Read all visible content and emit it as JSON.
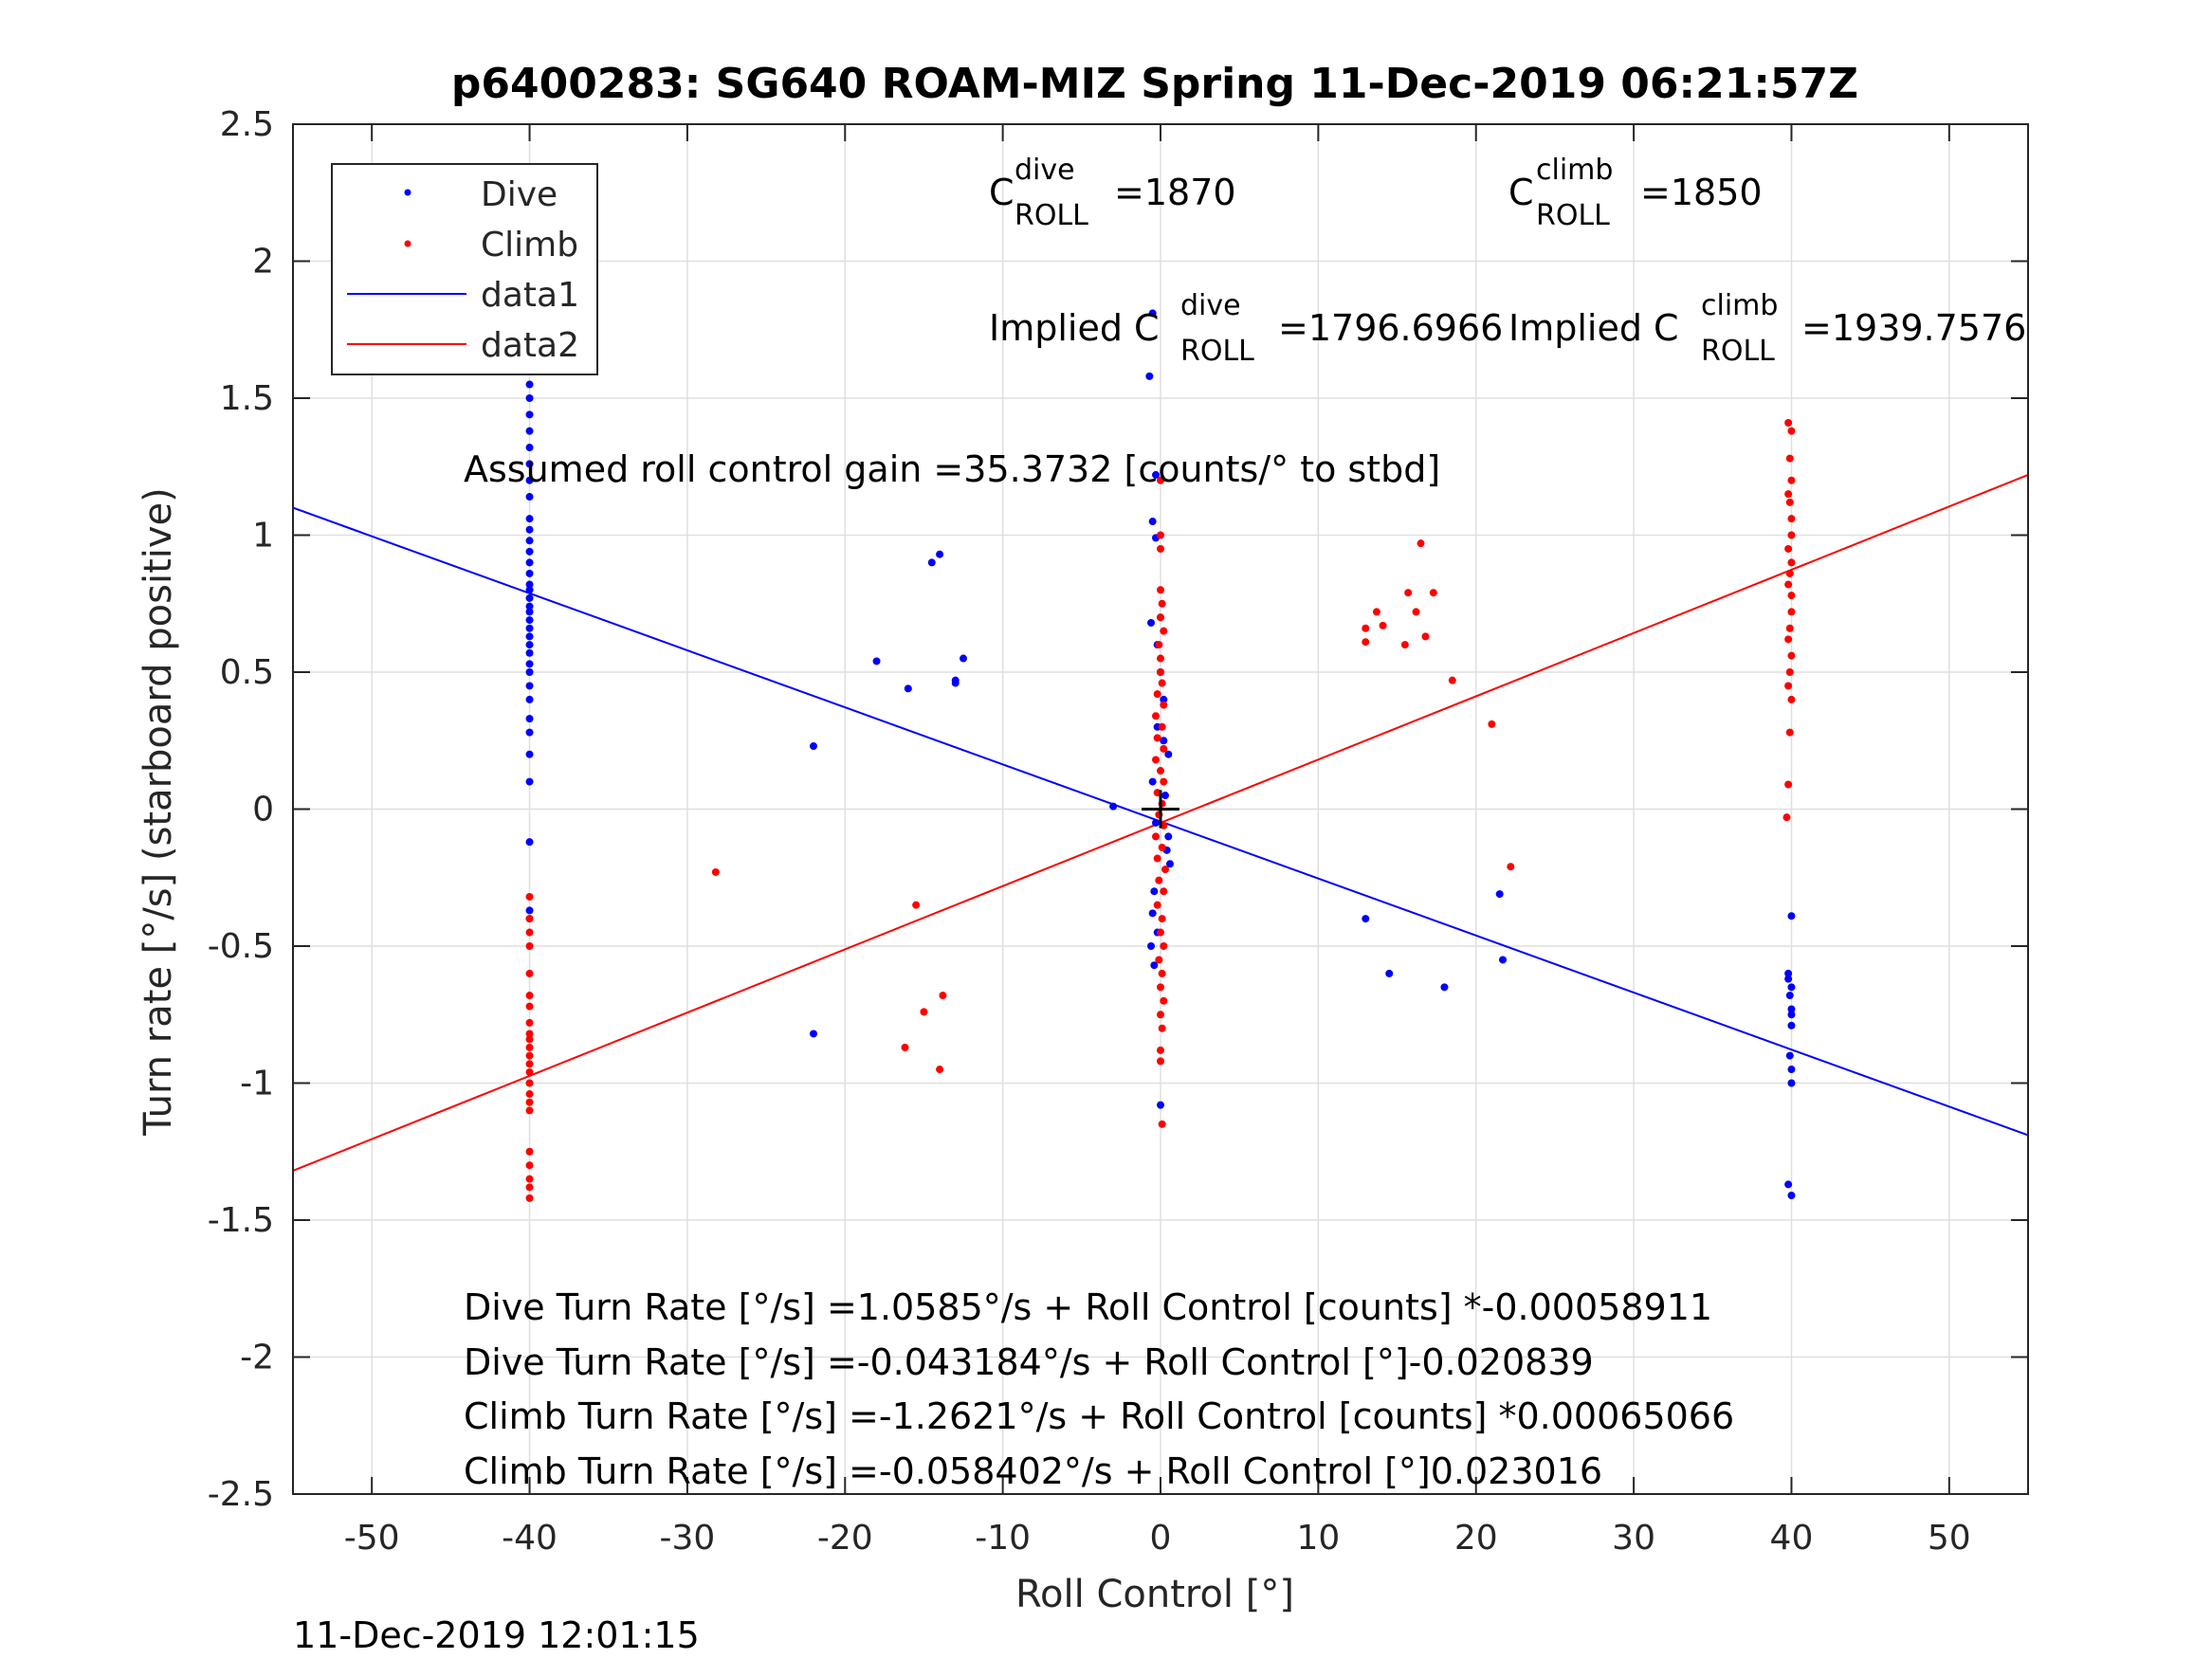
{
  "chart_data": {
    "type": "scatter",
    "title": "p6400283: SG640 ROAM-MIZ Spring 11-Dec-2019 06:21:57Z",
    "xlabel": "Roll Control [°]",
    "ylabel": "Turn rate [°/s] (starboard positive)",
    "xlim": [
      -55,
      55
    ],
    "ylim": [
      -2.5,
      2.5
    ],
    "xticks": [
      -50,
      -40,
      -30,
      -20,
      -10,
      0,
      10,
      20,
      30,
      40,
      50
    ],
    "yticks": [
      -2.5,
      -2,
      -1.5,
      -1,
      -0.5,
      0,
      0.5,
      1,
      1.5,
      2,
      2.5
    ],
    "ytick_labels": [
      "-2.5",
      "-2",
      "-1.5",
      "-1",
      "-0.5",
      "0",
      "0.5",
      "1",
      "1.5",
      "2",
      "2.5"
    ],
    "grid": true,
    "legend": {
      "position": "top-left",
      "entries": [
        {
          "label": "Dive",
          "color": "#0000ff",
          "marker": "dot"
        },
        {
          "label": "Climb",
          "color": "#ff0000",
          "marker": "dot"
        },
        {
          "label": "data1",
          "color": "#0000ff",
          "marker": "line"
        },
        {
          "label": "data2",
          "color": "#ff0000",
          "marker": "line"
        }
      ]
    },
    "series": [
      {
        "name": "Dive",
        "color": "#0000ff",
        "kind": "points",
        "points": [
          [
            -40,
            1.8
          ],
          [
            -40,
            1.74
          ],
          [
            -40,
            1.68
          ],
          [
            -40,
            1.6
          ],
          [
            -40,
            1.55
          ],
          [
            -40,
            1.5
          ],
          [
            -40,
            1.44
          ],
          [
            -40,
            1.38
          ],
          [
            -40,
            1.32
          ],
          [
            -40,
            1.26
          ],
          [
            -40,
            1.2
          ],
          [
            -40,
            1.14
          ],
          [
            -40,
            1.06
          ],
          [
            -40,
            1.02
          ],
          [
            -40,
            0.98
          ],
          [
            -40,
            0.94
          ],
          [
            -40,
            0.9
          ],
          [
            -40,
            0.86
          ],
          [
            -40,
            0.82
          ],
          [
            -40,
            0.8
          ],
          [
            -40,
            0.77
          ],
          [
            -40,
            0.74
          ],
          [
            -40,
            0.72
          ],
          [
            -40,
            0.69
          ],
          [
            -40,
            0.66
          ],
          [
            -40,
            0.63
          ],
          [
            -40,
            0.6
          ],
          [
            -40,
            0.57
          ],
          [
            -40,
            0.53
          ],
          [
            -40,
            0.5
          ],
          [
            -40,
            0.45
          ],
          [
            -40,
            0.4
          ],
          [
            -40,
            0.33
          ],
          [
            -40,
            0.28
          ],
          [
            -40,
            0.2
          ],
          [
            -40,
            0.1
          ],
          [
            -40,
            -0.12
          ],
          [
            -40,
            -0.37
          ],
          [
            -40,
            -0.4
          ],
          [
            -22,
            0.23
          ],
          [
            -22,
            -0.82
          ],
          [
            -18,
            0.54
          ],
          [
            -16,
            0.44
          ],
          [
            -14.5,
            0.9
          ],
          [
            -14,
            0.93
          ],
          [
            -13,
            0.47
          ],
          [
            -13,
            0.46
          ],
          [
            -12.5,
            0.55
          ],
          [
            -3,
            0.01
          ],
          [
            -0.5,
            1.81
          ],
          [
            -0.7,
            1.58
          ],
          [
            -0.3,
            1.22
          ],
          [
            -0.5,
            1.05
          ],
          [
            -0.3,
            0.99
          ],
          [
            -0.6,
            0.68
          ],
          [
            0,
            0.7
          ],
          [
            -0.2,
            0.6
          ],
          [
            0,
            0.5
          ],
          [
            0.2,
            0.4
          ],
          [
            -0.2,
            0.3
          ],
          [
            0.5,
            0.2
          ],
          [
            -0.5,
            0.1
          ],
          [
            0.3,
            0.05
          ],
          [
            -0.3,
            -0.05
          ],
          [
            0.5,
            -0.1
          ],
          [
            0.6,
            -0.2
          ],
          [
            -0.4,
            -0.3
          ],
          [
            -0.5,
            -0.38
          ],
          [
            -0.2,
            -0.45
          ],
          [
            -0.6,
            -0.5
          ],
          [
            -0.4,
            -0.57
          ],
          [
            0,
            -1.08
          ],
          [
            0.2,
            0.25
          ],
          [
            0.4,
            -0.15
          ],
          [
            13,
            -0.4
          ],
          [
            14.5,
            -0.6
          ],
          [
            18,
            -0.65
          ],
          [
            21.5,
            -0.31
          ],
          [
            21.7,
            -0.55
          ],
          [
            40,
            -0.39
          ],
          [
            39.8,
            -0.6
          ],
          [
            39.8,
            -0.62
          ],
          [
            40,
            -0.65
          ],
          [
            39.9,
            -0.68
          ],
          [
            40,
            -0.73
          ],
          [
            40,
            -0.75
          ],
          [
            40,
            -0.79
          ],
          [
            39.9,
            -0.9
          ],
          [
            40,
            -0.95
          ],
          [
            40,
            -1.0
          ],
          [
            39.8,
            -1.37
          ],
          [
            40,
            -1.41
          ]
        ]
      },
      {
        "name": "Climb",
        "color": "#ff0000",
        "kind": "points",
        "points": [
          [
            -40,
            -0.32
          ],
          [
            -40,
            -0.4
          ],
          [
            -40,
            -0.45
          ],
          [
            -40,
            -0.5
          ],
          [
            -40,
            -0.6
          ],
          [
            -40,
            -0.68
          ],
          [
            -40,
            -0.72
          ],
          [
            -40,
            -0.78
          ],
          [
            -40,
            -0.82
          ],
          [
            -40,
            -0.84
          ],
          [
            -40,
            -0.87
          ],
          [
            -40,
            -0.9
          ],
          [
            -40,
            -0.93
          ],
          [
            -40,
            -0.96
          ],
          [
            -40,
            -1.0
          ],
          [
            -40,
            -1.04
          ],
          [
            -40,
            -1.07
          ],
          [
            -40,
            -1.1
          ],
          [
            -40,
            -1.25
          ],
          [
            -40,
            -1.3
          ],
          [
            -40,
            -1.35
          ],
          [
            -40,
            -1.38
          ],
          [
            -40,
            -1.42
          ],
          [
            -28.2,
            -0.23
          ],
          [
            -16.2,
            -0.87
          ],
          [
            -15.5,
            -0.35
          ],
          [
            -15,
            -0.74
          ],
          [
            -14,
            -0.95
          ],
          [
            -13.8,
            -0.68
          ],
          [
            0,
            1.2
          ],
          [
            0,
            1.0
          ],
          [
            0,
            0.95
          ],
          [
            0,
            0.8
          ],
          [
            0.1,
            0.75
          ],
          [
            0,
            0.7
          ],
          [
            0.2,
            0.65
          ],
          [
            -0.1,
            0.6
          ],
          [
            0,
            0.55
          ],
          [
            0,
            0.5
          ],
          [
            0.1,
            0.46
          ],
          [
            -0.2,
            0.42
          ],
          [
            0.2,
            0.38
          ],
          [
            -0.3,
            0.34
          ],
          [
            0.1,
            0.3
          ],
          [
            -0.2,
            0.26
          ],
          [
            0.2,
            0.22
          ],
          [
            -0.3,
            0.18
          ],
          [
            0,
            0.14
          ],
          [
            0.2,
            0.1
          ],
          [
            -0.2,
            0.06
          ],
          [
            0.1,
            0.02
          ],
          [
            -0.1,
            -0.02
          ],
          [
            0.2,
            -0.06
          ],
          [
            -0.3,
            -0.1
          ],
          [
            0.1,
            -0.14
          ],
          [
            -0.2,
            -0.18
          ],
          [
            0.3,
            -0.22
          ],
          [
            -0.1,
            -0.26
          ],
          [
            0.2,
            -0.3
          ],
          [
            -0.2,
            -0.35
          ],
          [
            0.1,
            -0.4
          ],
          [
            0,
            -0.45
          ],
          [
            0.2,
            -0.5
          ],
          [
            -0.1,
            -0.55
          ],
          [
            0.1,
            -0.6
          ],
          [
            0,
            -0.65
          ],
          [
            0.2,
            -0.7
          ],
          [
            0,
            -0.75
          ],
          [
            0.1,
            -0.8
          ],
          [
            0,
            -0.88
          ],
          [
            0,
            -0.92
          ],
          [
            0.1,
            -1.15
          ],
          [
            13,
            0.66
          ],
          [
            13,
            0.61
          ],
          [
            13.7,
            0.72
          ],
          [
            14.1,
            0.67
          ],
          [
            15.5,
            0.6
          ],
          [
            15.7,
            0.79
          ],
          [
            16.2,
            0.72
          ],
          [
            16.5,
            0.97
          ],
          [
            16.8,
            0.63
          ],
          [
            17.3,
            0.79
          ],
          [
            18.5,
            0.47
          ],
          [
            21,
            0.31
          ],
          [
            22.2,
            -0.21
          ],
          [
            39.8,
            1.41
          ],
          [
            40,
            1.38
          ],
          [
            39.9,
            1.28
          ],
          [
            40,
            1.2
          ],
          [
            39.8,
            1.15
          ],
          [
            39.9,
            1.12
          ],
          [
            40,
            1.06
          ],
          [
            40,
            1.0
          ],
          [
            39.8,
            0.95
          ],
          [
            40,
            0.9
          ],
          [
            39.9,
            0.86
          ],
          [
            39.8,
            0.82
          ],
          [
            40,
            0.78
          ],
          [
            40,
            0.72
          ],
          [
            39.9,
            0.66
          ],
          [
            39.8,
            0.62
          ],
          [
            40,
            0.56
          ],
          [
            39.9,
            0.5
          ],
          [
            39.8,
            0.45
          ],
          [
            40,
            0.4
          ],
          [
            39.9,
            0.28
          ],
          [
            39.8,
            0.09
          ],
          [
            39.7,
            -0.03
          ]
        ]
      },
      {
        "name": "data1",
        "color": "#0000ff",
        "kind": "line",
        "x": [
          -55,
          55
        ],
        "y": [
          1.1,
          -1.19
        ]
      },
      {
        "name": "data2",
        "color": "#ff0000",
        "kind": "line",
        "x": [
          -55,
          55
        ],
        "y": [
          -1.32,
          1.22
        ]
      }
    ],
    "crosshair": {
      "x": 0,
      "y": 0,
      "color": "#000000"
    },
    "annotations": {
      "c_dive": {
        "base": "C",
        "sup": "dive",
        "sub": "ROLL",
        "value": "=1870"
      },
      "c_climb": {
        "base": "C",
        "sup": "climb",
        "sub": "ROLL",
        "value": "=1850"
      },
      "implied_dive": {
        "base": "Implied C",
        "sup": "dive",
        "sub": "ROLL",
        "value": "=1796.6966"
      },
      "implied_climb": {
        "base": "Implied C",
        "sup": "climb",
        "sub": "ROLL",
        "value": "=1939.7576"
      },
      "gain": "Assumed roll control gain =35.3732 [counts/° to stbd]",
      "eq1": "Dive Turn Rate [°/s] =1.0585°/s + Roll Control [counts] *-0.00058911",
      "eq2": "Dive Turn Rate [°/s] =-0.043184°/s + Roll Control [°]-0.020839",
      "eq3": "Climb Turn Rate [°/s] =-1.2621°/s + Roll Control [counts] *0.00065066",
      "eq4": "Climb Turn Rate [°/s] =-0.058402°/s + Roll Control [°]0.023016"
    },
    "timestamp": "11-Dec-2019 12:01:15"
  }
}
